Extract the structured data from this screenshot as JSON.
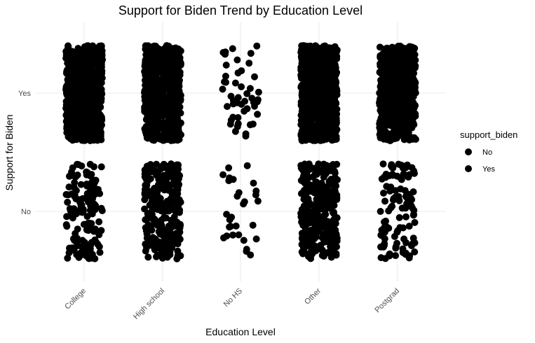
{
  "chart_data": {
    "type": "scatter",
    "title": "Support for Biden Trend by Education Level",
    "xlabel": "Education Level",
    "ylabel": "Support for Biden",
    "categories": [
      "College",
      "High school",
      "No HS",
      "Other",
      "Postgrad"
    ],
    "y_categories": [
      "No",
      "Yes"
    ],
    "jitter": true,
    "grid": true,
    "legend": {
      "title": "support_biden",
      "placement": "right",
      "entries": [
        "No",
        "Yes"
      ]
    },
    "series": [
      {
        "name": "No",
        "y": "No",
        "counts": {
          "College": 150,
          "High school": 260,
          "No HS": 30,
          "Other": 330,
          "Postgrad": 110
        }
      },
      {
        "name": "Yes",
        "y": "Yes",
        "counts": {
          "College": 700,
          "High school": 650,
          "No HS": 48,
          "Other": 800,
          "Postgrad": 650
        }
      }
    ],
    "point_color": "#000000"
  }
}
